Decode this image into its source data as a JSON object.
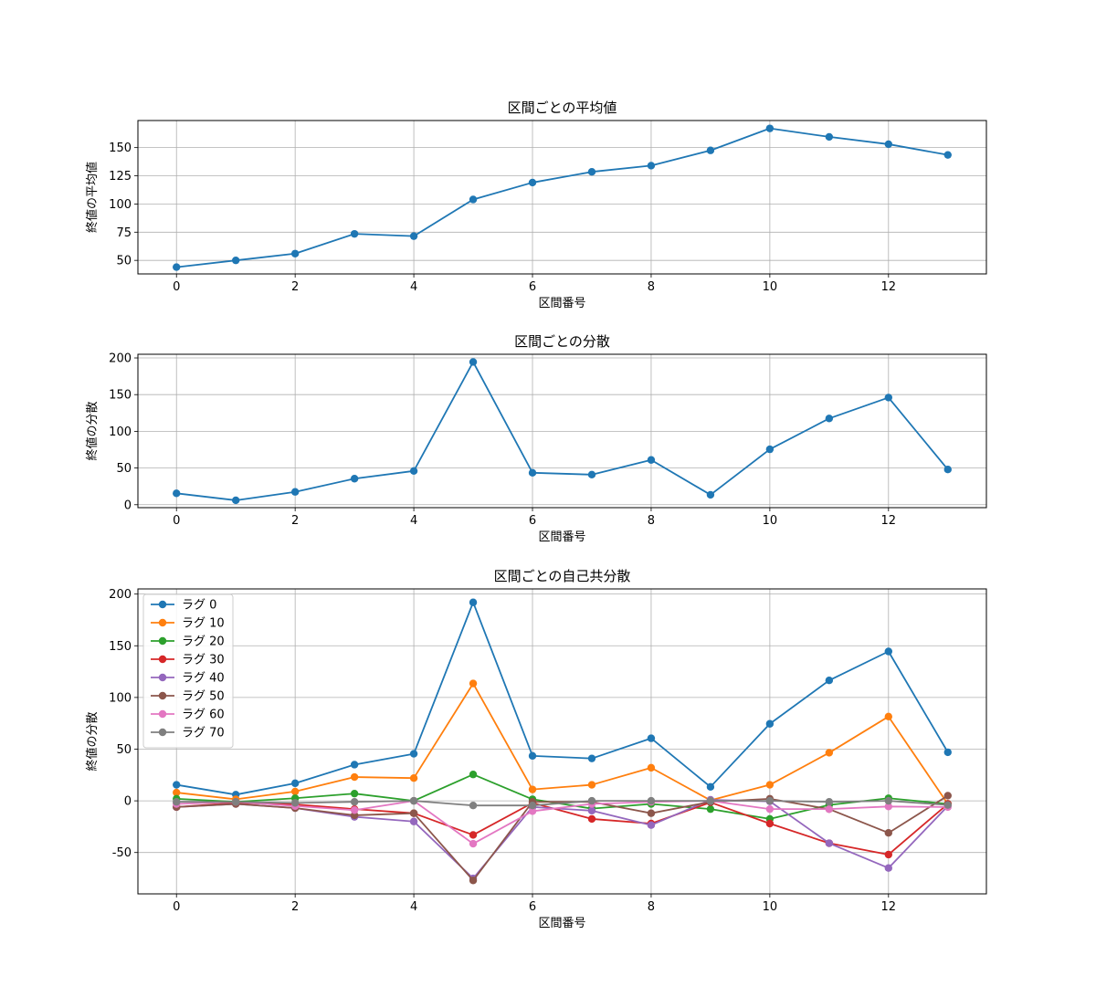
{
  "chart_data": [
    {
      "type": "line",
      "title": "区間ごとの平均値",
      "xlabel": "区間番号",
      "ylabel": "終値の平均値",
      "x": [
        0,
        1,
        2,
        3,
        4,
        5,
        6,
        7,
        8,
        9,
        10,
        11,
        12,
        13
      ],
      "xticks": [
        0,
        2,
        4,
        6,
        8,
        10,
        12
      ],
      "xlim": [
        -0.65,
        13.65
      ],
      "yticks": [
        50,
        75,
        100,
        125,
        150
      ],
      "ylim": [
        38,
        174
      ],
      "grid": true,
      "series": [
        {
          "values": [
            44,
            50,
            56,
            73.5,
            71.5,
            104,
            119,
            128.5,
            134,
            147.5,
            167,
            159.5,
            153,
            143.5
          ],
          "color": "#1f77b4"
        }
      ]
    },
    {
      "type": "line",
      "title": "区間ごとの分散",
      "xlabel": "区間番号",
      "ylabel": "終値の分散",
      "x": [
        0,
        1,
        2,
        3,
        4,
        5,
        6,
        7,
        8,
        9,
        10,
        11,
        12,
        13
      ],
      "xticks": [
        0,
        2,
        4,
        6,
        8,
        10,
        12
      ],
      "xlim": [
        -0.65,
        13.65
      ],
      "yticks": [
        0,
        50,
        100,
        150,
        200
      ],
      "ylim": [
        -4,
        205
      ],
      "grid": true,
      "series": [
        {
          "values": [
            15.5,
            6,
            17.5,
            35.5,
            46,
            194.5,
            43.5,
            41,
            61,
            13.5,
            75.5,
            117.5,
            146,
            48
          ],
          "color": "#1f77b4"
        }
      ]
    },
    {
      "type": "line",
      "title": "区間ごとの自己共分散",
      "xlabel": "区間番号",
      "ylabel": "終値の分散",
      "x": [
        0,
        1,
        2,
        3,
        4,
        5,
        6,
        7,
        8,
        9,
        10,
        11,
        12,
        13
      ],
      "xticks": [
        0,
        2,
        4,
        6,
        8,
        10,
        12
      ],
      "xlim": [
        -0.65,
        13.65
      ],
      "yticks": [
        -50,
        0,
        50,
        100,
        150,
        200
      ],
      "ylim": [
        -90,
        205
      ],
      "grid": true,
      "legend": "upper-left",
      "series": [
        {
          "name": "ラグ 0",
          "color": "#1f77b4",
          "values": [
            15.5,
            6,
            17,
            35,
            45.5,
            192,
            43.5,
            41,
            60.5,
            13.5,
            74.5,
            116.5,
            144.5,
            47
          ]
        },
        {
          "name": "ラグ 10",
          "color": "#ff7f0e",
          "values": [
            8,
            1.5,
            9,
            23,
            22,
            113.5,
            11,
            15.5,
            32,
            0.5,
            15.5,
            46.5,
            81.5,
            -3
          ]
        },
        {
          "name": "ラグ 20",
          "color": "#2ca02c",
          "values": [
            2,
            -1,
            2.5,
            7,
            0,
            25.5,
            1.5,
            -7.5,
            -3,
            -8,
            -17.5,
            -4,
            2.5,
            -3
          ]
        },
        {
          "name": "ラグ 30",
          "color": "#d62728",
          "values": [
            -6,
            -2,
            -3.5,
            -8,
            -12,
            -33,
            -2,
            -17.5,
            -22,
            -1.5,
            -22,
            -41,
            -52,
            -3
          ]
        },
        {
          "name": "ラグ 40",
          "color": "#9467bd",
          "values": [
            -6,
            -3,
            -7,
            -15.5,
            -20,
            -75,
            -6,
            -9.5,
            -23.5,
            1,
            -0.5,
            -41,
            -65,
            -5
          ]
        },
        {
          "name": "ラグ 50",
          "color": "#8c564b",
          "values": [
            -6,
            -3,
            -7,
            -14,
            -12,
            -77,
            -1,
            -1,
            -12,
            -1,
            2,
            -8,
            -31,
            5
          ]
        },
        {
          "name": "ラグ 60",
          "color": "#e377c2",
          "values": [
            -3,
            -1,
            -5,
            -9,
            0,
            -41.5,
            -10,
            -3,
            -1,
            0,
            -8,
            -8,
            -5.5,
            -6
          ]
        },
        {
          "name": "ラグ 70",
          "color": "#7f7f7f",
          "values": [
            -1,
            -1,
            -2,
            -1,
            0,
            -4.5,
            -4.5,
            0,
            0,
            0,
            0,
            -1,
            0,
            -4
          ]
        }
      ]
    }
  ]
}
